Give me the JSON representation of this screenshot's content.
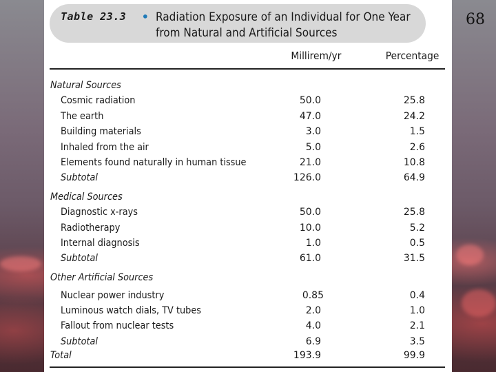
{
  "page_number": "68",
  "table": {
    "label": "Table 23.3",
    "bullet": "•",
    "title_line1": "Radiation Exposure of an Individual for One Year",
    "title_line2": "from Natural and Artificial Sources",
    "columns": [
      "Millirem/yr",
      "Percentage"
    ],
    "sections": [
      {
        "heading": "Natural Sources",
        "rows": [
          {
            "name": "Cosmic radiation",
            "millirem": "50.0",
            "percentage": "25.8"
          },
          {
            "name": "The earth",
            "millirem": "47.0",
            "percentage": "24.2"
          },
          {
            "name": "Building materials",
            "millirem": "3.0",
            "percentage": "1.5"
          },
          {
            "name": "Inhaled from the air",
            "millirem": "5.0",
            "percentage": "2.6"
          },
          {
            "name": "Elements found naturally in human tissue",
            "millirem": "21.0",
            "percentage": "10.8"
          }
        ],
        "subtotal": {
          "name": "Subtotal",
          "millirem": "126.0",
          "percentage": "64.9"
        }
      },
      {
        "heading": "Medical Sources",
        "rows": [
          {
            "name": "Diagnostic x-rays",
            "millirem": "50.0",
            "percentage": "25.8"
          },
          {
            "name": "Radiotherapy",
            "millirem": "10.0",
            "percentage": "5.2"
          },
          {
            "name": "Internal diagnosis",
            "millirem": "1.0",
            "percentage": "0.5"
          }
        ],
        "subtotal": {
          "name": "Subtotal",
          "millirem": "61.0",
          "percentage": "31.5"
        }
      },
      {
        "heading": "Other Artificial Sources",
        "rows": [
          {
            "name": "Nuclear power industry",
            "millirem": "0.85",
            "percentage": "0.4"
          },
          {
            "name": "Luminous watch dials, TV tubes",
            "millirem": "2.0",
            "percentage": "1.0"
          },
          {
            "name": "Fallout from nuclear tests",
            "millirem": "4.0",
            "percentage": "2.1"
          }
        ],
        "subtotal": {
          "name": "Subtotal",
          "millirem": "6.9",
          "percentage": "3.5"
        }
      }
    ],
    "total": {
      "name": "Total",
      "millirem": "193.9",
      "percentage": "99.9"
    }
  },
  "colors": {
    "caption_background": "#d8d8d8",
    "bullet": "#1f7ab8"
  }
}
